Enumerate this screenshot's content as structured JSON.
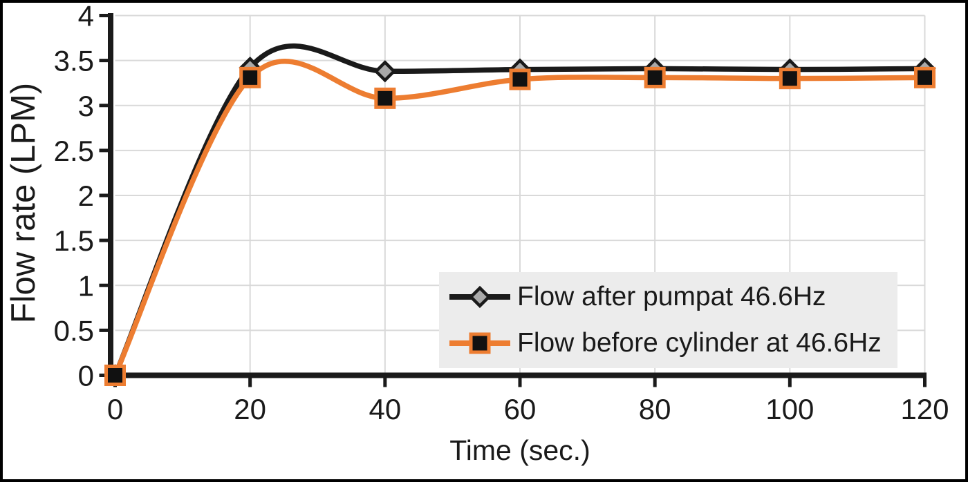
{
  "chart_data": {
    "type": "line",
    "title": "",
    "xlabel": "Time (sec.)",
    "ylabel": "Flow rate (LPM)",
    "xlim": [
      0,
      120
    ],
    "ylim": [
      0,
      4
    ],
    "xticks": [
      0,
      20,
      40,
      60,
      80,
      100,
      120
    ],
    "yticks": [
      0,
      0.5,
      1,
      1.5,
      2,
      2.5,
      3,
      3.5,
      4
    ],
    "grid": "on",
    "smooth_lines": true,
    "legend_position": "inside-bottom-right",
    "x": [
      0,
      20,
      40,
      60,
      80,
      100,
      120
    ],
    "series": [
      {
        "name": "Flow after pumpat 46.6Hz",
        "values": [
          0,
          3.42,
          3.38,
          3.4,
          3.41,
          3.4,
          3.41
        ],
        "line_color": "#1a1a1a",
        "marker": "diamond",
        "marker_fill": "#a9a9a9",
        "marker_stroke": "#1a1a1a"
      },
      {
        "name": "Flow before cylinder at 46.6Hz",
        "values": [
          0,
          3.31,
          3.08,
          3.29,
          3.31,
          3.3,
          3.31
        ],
        "line_color": "#ed7d31",
        "marker": "square",
        "marker_fill": "#111111",
        "marker_stroke": "#ed7d31"
      }
    ],
    "colors": {
      "gridline": "#d9d9d9",
      "axis": "#1a1a1a",
      "text": "#1a1a1a",
      "legend_bg": "#ececec"
    }
  }
}
